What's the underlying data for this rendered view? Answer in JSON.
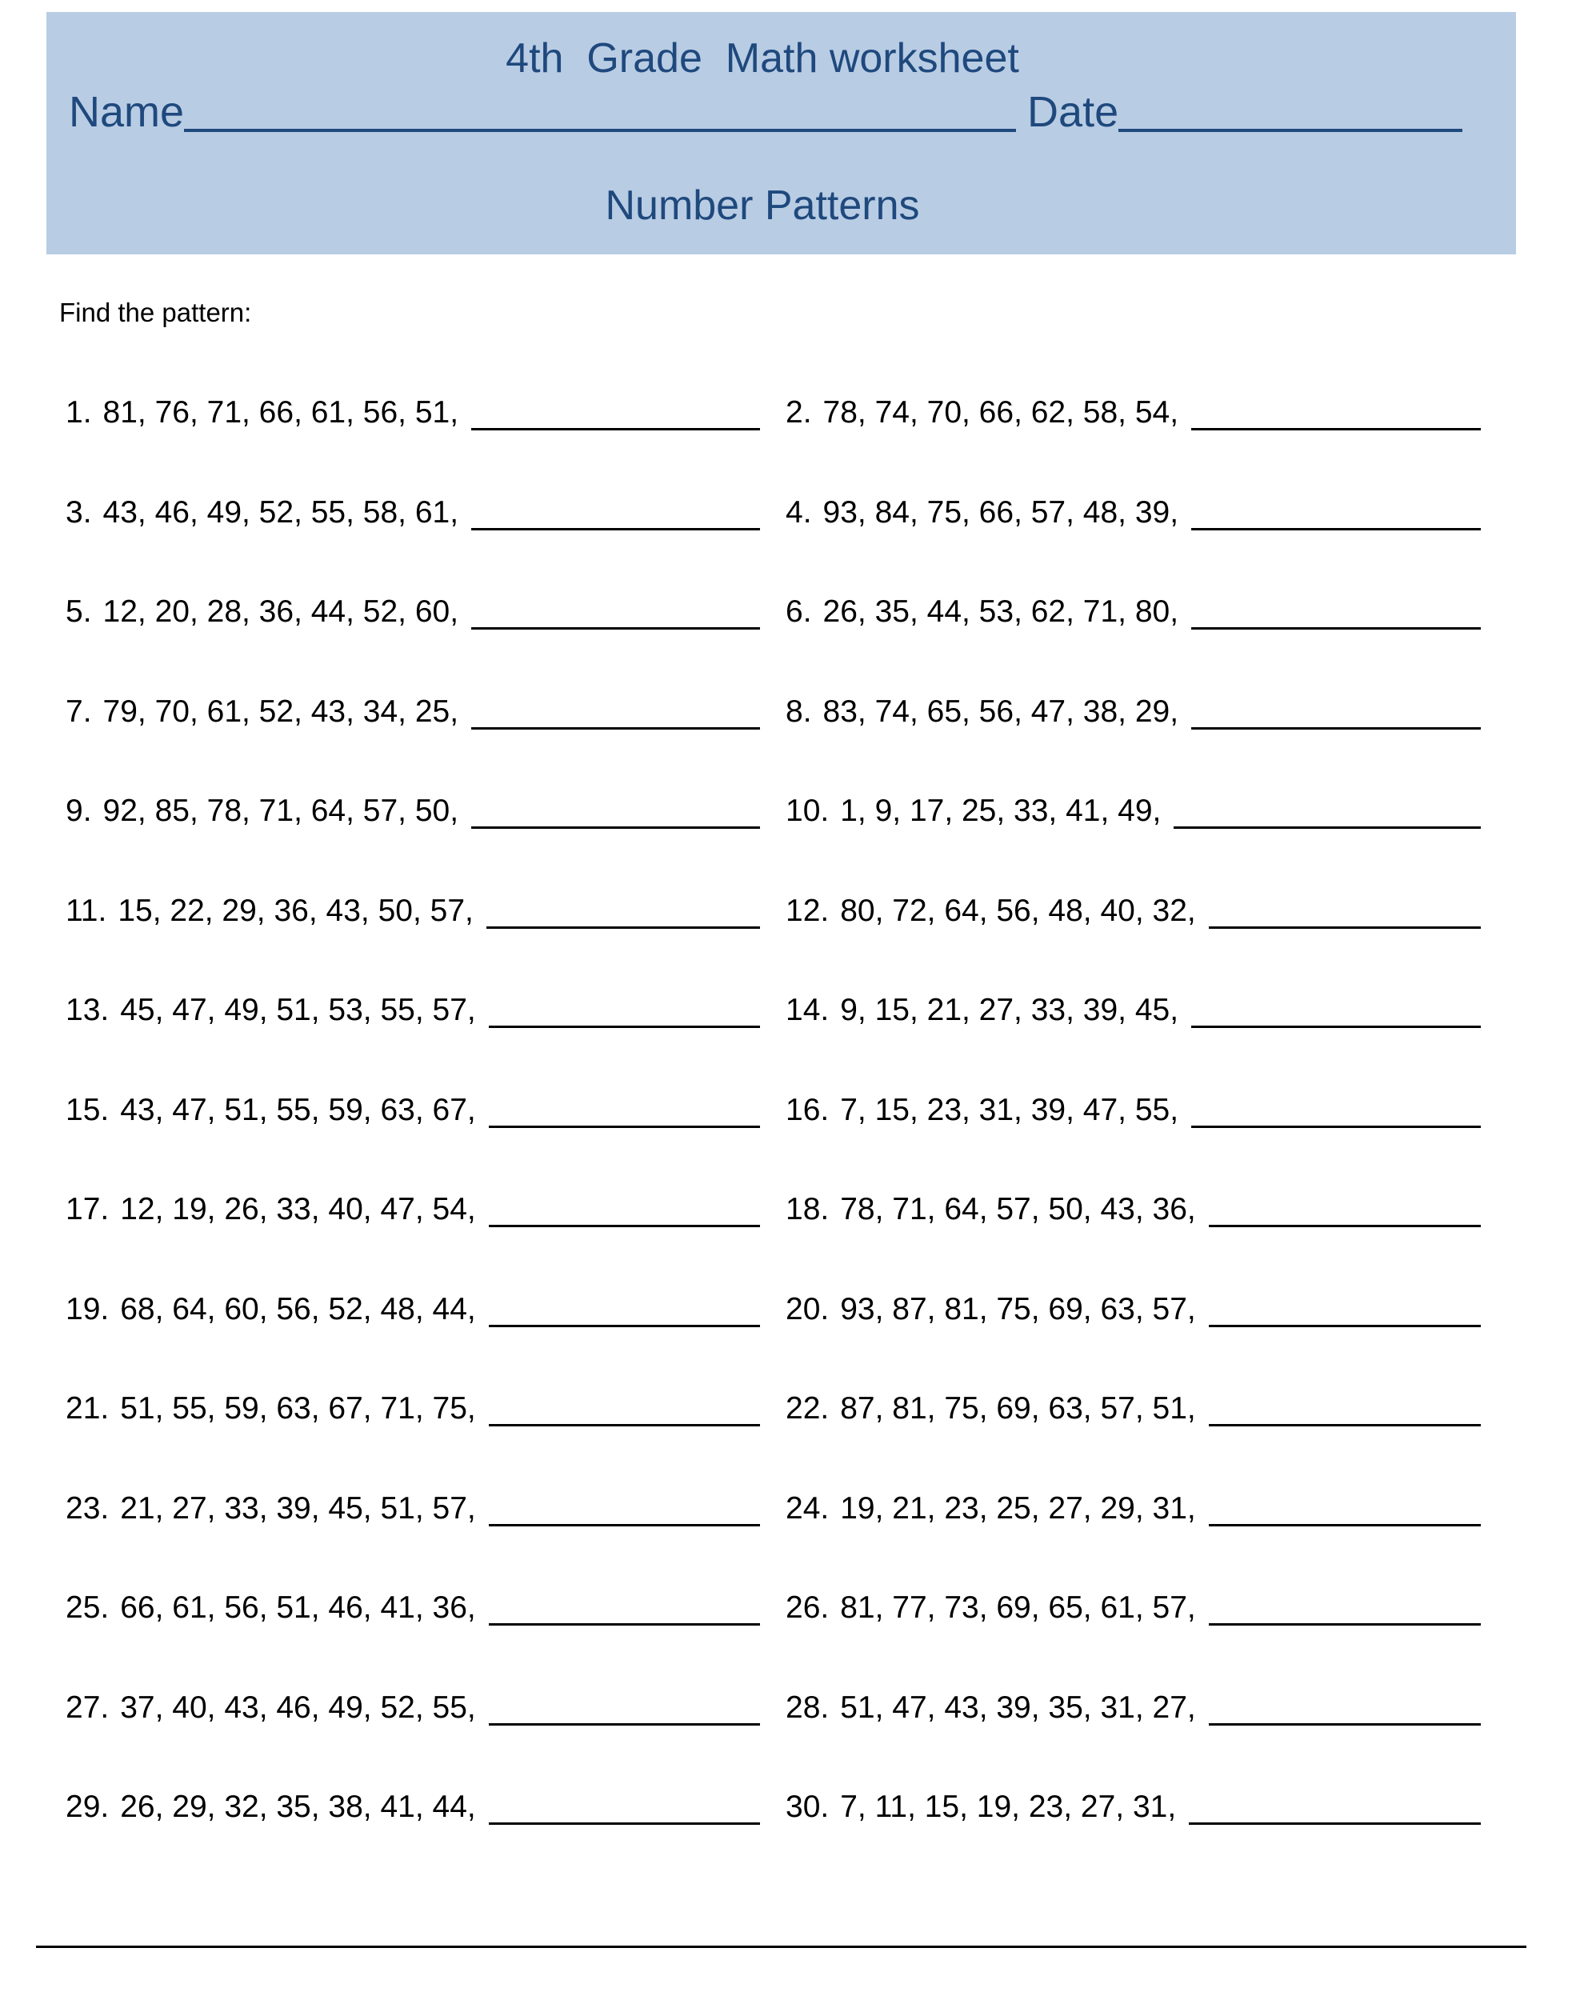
{
  "header": {
    "title": "4th  Grade  Math worksheet",
    "name_label": "Name",
    "date_label": "Date",
    "subtitle": "Number Patterns",
    "bg_color": "#b8cce4",
    "text_color": "#1f497d"
  },
  "instructions": "Find the pattern:",
  "problems": [
    {
      "n": "1.",
      "seq": "81, 76, 71, 66, 61, 56, 51,"
    },
    {
      "n": "2.",
      "seq": "78, 74, 70, 66, 62, 58, 54,"
    },
    {
      "n": "3.",
      "seq": "43, 46, 49, 52, 55, 58, 61,"
    },
    {
      "n": "4.",
      "seq": "93, 84, 75, 66, 57, 48, 39,"
    },
    {
      "n": "5.",
      "seq": "12, 20, 28, 36, 44, 52, 60,"
    },
    {
      "n": "6.",
      "seq": "26, 35, 44, 53, 62, 71, 80,"
    },
    {
      "n": "7.",
      "seq": "79, 70, 61, 52, 43, 34, 25,"
    },
    {
      "n": "8.",
      "seq": "83, 74, 65, 56, 47, 38, 29,"
    },
    {
      "n": "9.",
      "seq": "92, 85, 78, 71, 64, 57, 50,"
    },
    {
      "n": "10.",
      "seq": "1, 9, 17, 25, 33, 41, 49,"
    },
    {
      "n": "11.",
      "seq": "15, 22, 29, 36, 43, 50, 57,"
    },
    {
      "n": "12.",
      "seq": "80, 72, 64, 56, 48, 40, 32,"
    },
    {
      "n": "13.",
      "seq": "45, 47, 49, 51, 53, 55, 57,"
    },
    {
      "n": "14.",
      "seq": "9, 15, 21, 27, 33, 39, 45,"
    },
    {
      "n": "15.",
      "seq": "43, 47, 51, 55, 59, 63, 67,"
    },
    {
      "n": "16.",
      "seq": "7, 15, 23, 31, 39, 47, 55,"
    },
    {
      "n": "17.",
      "seq": "12, 19, 26, 33, 40, 47, 54,"
    },
    {
      "n": "18.",
      "seq": "78, 71, 64, 57, 50, 43, 36,"
    },
    {
      "n": "19.",
      "seq": "68, 64, 60, 56, 52, 48, 44,"
    },
    {
      "n": "20.",
      "seq": "93, 87, 81, 75, 69, 63, 57,"
    },
    {
      "n": "21.",
      "seq": "51, 55, 59, 63, 67, 71, 75,"
    },
    {
      "n": "22.",
      "seq": "87, 81, 75, 69, 63, 57, 51,"
    },
    {
      "n": "23.",
      "seq": "21, 27, 33, 39, 45, 51, 57,"
    },
    {
      "n": "24.",
      "seq": "19, 21, 23, 25, 27, 29, 31,"
    },
    {
      "n": "25.",
      "seq": "66, 61, 56, 51, 46, 41, 36,"
    },
    {
      "n": "26.",
      "seq": "81, 77, 73, 69, 65, 61, 57,"
    },
    {
      "n": "27.",
      "seq": "37, 40, 43, 46, 49, 52, 55,"
    },
    {
      "n": "28.",
      "seq": "51, 47, 43, 39, 35, 31, 27,"
    },
    {
      "n": "29.",
      "seq": "26, 29, 32, 35, 38, 41, 44,"
    },
    {
      "n": "30.",
      "seq": "7, 11, 15, 19, 23, 27, 31,"
    }
  ]
}
